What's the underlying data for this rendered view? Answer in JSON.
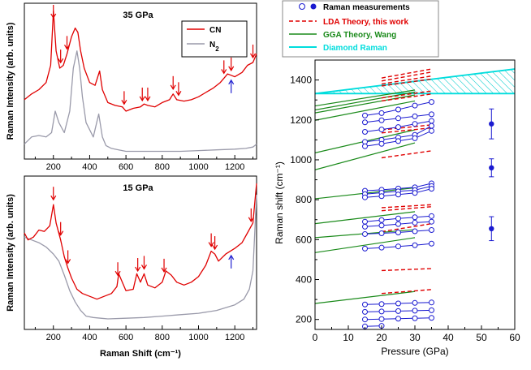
{
  "chart_data": [
    {
      "type": "line",
      "title": "35 GPa",
      "xlabel": "",
      "ylabel": "Raman Intensity (arb. units)",
      "xlim": [
        40,
        1320
      ],
      "xticks": [
        200,
        400,
        600,
        800,
        1000,
        1200
      ],
      "legend": [
        {
          "name": "CN",
          "color": "#e00000"
        },
        {
          "name": "N",
          "sub": "2",
          "color": "#9a9aaa"
        }
      ],
      "series": [
        {
          "name": "CN",
          "color": "#e00000",
          "x": [
            40,
            80,
            120,
            160,
            185,
            200,
            215,
            235,
            255,
            275,
            300,
            320,
            335,
            350,
            370,
            400,
            430,
            455,
            470,
            500,
            540,
            580,
            600,
            640,
            680,
            700,
            720,
            760,
            800,
            840,
            860,
            880,
            920,
            960,
            1000,
            1040,
            1080,
            1120,
            1140,
            1160,
            1180,
            1200,
            1240,
            1270,
            1300,
            1320
          ],
          "y": [
            0.38,
            0.42,
            0.45,
            0.5,
            0.62,
            1.0,
            0.72,
            0.6,
            0.62,
            0.7,
            0.82,
            0.88,
            0.85,
            0.72,
            0.6,
            0.5,
            0.48,
            0.58,
            0.45,
            0.36,
            0.34,
            0.33,
            0.3,
            0.32,
            0.33,
            0.35,
            0.34,
            0.33,
            0.36,
            0.38,
            0.42,
            0.38,
            0.37,
            0.38,
            0.4,
            0.43,
            0.46,
            0.5,
            0.53,
            0.56,
            0.55,
            0.54,
            0.57,
            0.62,
            0.64,
            0.7
          ]
        },
        {
          "name": "N2",
          "color": "#9a9aaa",
          "x": [
            40,
            80,
            120,
            160,
            190,
            210,
            230,
            260,
            290,
            310,
            330,
            345,
            360,
            380,
            420,
            450,
            470,
            490,
            520,
            560,
            600,
            700,
            800,
            900,
            1000,
            1100,
            1200,
            1260,
            1300,
            1320
          ],
          "y": [
            0.07,
            0.12,
            0.13,
            0.12,
            0.15,
            0.3,
            0.22,
            0.15,
            0.3,
            0.6,
            0.72,
            0.6,
            0.4,
            0.22,
            0.12,
            0.28,
            0.12,
            0.06,
            0.04,
            0.03,
            0.02,
            0.02,
            0.02,
            0.02,
            0.025,
            0.03,
            0.035,
            0.04,
            0.05,
            0.07
          ]
        }
      ],
      "red_arrows_x": [
        200,
        240,
        275,
        590,
        690,
        720,
        860,
        890,
        1140,
        1180,
        1300
      ],
      "blue_arrow_x": 1180
    },
    {
      "type": "line",
      "title": "15 GPa",
      "xlabel": "Raman Shift (cm⁻¹)",
      "ylabel": "Raman Intensity (arb. units)",
      "xlim": [
        40,
        1320
      ],
      "xticks": [
        200,
        400,
        600,
        800,
        1000,
        1200
      ],
      "series": [
        {
          "name": "CN",
          "color": "#e00000",
          "x": [
            40,
            60,
            90,
            120,
            150,
            180,
            200,
            215,
            240,
            260,
            280,
            300,
            330,
            360,
            400,
            440,
            480,
            520,
            550,
            560,
            600,
            640,
            660,
            680,
            700,
            720,
            760,
            800,
            820,
            850,
            880,
            920,
            960,
            1000,
            1040,
            1070,
            1090,
            1110,
            1150,
            1200,
            1240,
            1270,
            1300,
            1320
          ],
          "y": [
            0.65,
            0.6,
            0.62,
            0.67,
            0.66,
            0.7,
            0.85,
            0.72,
            0.6,
            0.48,
            0.4,
            0.33,
            0.25,
            0.22,
            0.2,
            0.18,
            0.2,
            0.22,
            0.27,
            0.36,
            0.24,
            0.25,
            0.36,
            0.3,
            0.36,
            0.28,
            0.26,
            0.3,
            0.38,
            0.35,
            0.3,
            0.28,
            0.3,
            0.34,
            0.42,
            0.52,
            0.5,
            0.45,
            0.5,
            0.54,
            0.58,
            0.65,
            0.72,
            1.0
          ]
        },
        {
          "name": "N2",
          "color": "#9a9aaa",
          "x": [
            40,
            80,
            120,
            160,
            200,
            230,
            260,
            290,
            320,
            350,
            380,
            420,
            500,
            600,
            700,
            800,
            900,
            1000,
            1100,
            1200,
            1250,
            1280,
            1300,
            1320
          ],
          "y": [
            0.62,
            0.6,
            0.58,
            0.55,
            0.5,
            0.45,
            0.35,
            0.24,
            0.16,
            0.1,
            0.06,
            0.05,
            0.04,
            0.045,
            0.05,
            0.06,
            0.07,
            0.08,
            0.1,
            0.14,
            0.18,
            0.25,
            0.38,
            0.92
          ]
        }
      ],
      "red_arrows_x": [
        200,
        240,
        280,
        555,
        665,
        700,
        810,
        1070,
        1090,
        1290
      ],
      "blue_arrow_x": 1180
    },
    {
      "type": "scatter",
      "title": "",
      "xlabel": "Pressure (GPa)",
      "ylabel": "Raman shift (cm⁻¹)",
      "xlim": [
        0,
        60
      ],
      "ylim": [
        150,
        1500
      ],
      "xticks": [
        0,
        10,
        20,
        30,
        40,
        50,
        60
      ],
      "yticks": [
        200,
        400,
        600,
        800,
        1000,
        1200,
        1400
      ],
      "legend_labels": [
        "Raman measurements",
        "LDA Theory, this work",
        "GGA Theory, Wang",
        "Diamond Raman"
      ],
      "legend_colors": [
        "#1a1ad0",
        "#e00000",
        "#1a8a1a",
        "#00dddd"
      ],
      "diamond_band": {
        "x": [
          0,
          60
        ],
        "lower": [
          1332,
          1332
        ],
        "upper": [
          1332,
          1455
        ]
      },
      "measured_open": [
        {
          "x": [
            15,
            20,
            25,
            30,
            35
          ],
          "y": [
            1222,
            1234,
            1252,
            1272,
            1290
          ]
        },
        {
          "x": [
            15,
            20,
            25,
            30,
            35
          ],
          "y": [
            1188,
            1198,
            1208,
            1218,
            1228
          ]
        },
        {
          "x": [
            15,
            20,
            25,
            30,
            35
          ],
          "y": [
            1140,
            1152,
            1164,
            1180,
            1195
          ]
        },
        {
          "x": [
            15,
            20,
            25,
            30,
            35
          ],
          "y": [
            1090,
            1100,
            1112,
            1125,
            1170
          ]
        },
        {
          "x": [
            15,
            20,
            25,
            30,
            35
          ],
          "y": [
            1068,
            1080,
            1094,
            1108,
            1145
          ]
        },
        {
          "x": [
            15,
            20,
            25,
            30,
            35
          ],
          "y": [
            845,
            850,
            856,
            862,
            882
          ]
        },
        {
          "x": [
            15,
            20,
            25,
            30,
            35
          ],
          "y": [
            828,
            835,
            842,
            848,
            868
          ]
        },
        {
          "x": [
            15,
            20,
            25,
            30,
            35
          ],
          "y": [
            812,
            818,
            826,
            834,
            855
          ]
        },
        {
          "x": [
            15,
            20,
            25,
            30,
            35
          ],
          "y": [
            690,
            698,
            706,
            712,
            718
          ]
        },
        {
          "x": [
            15,
            20,
            25,
            30,
            35
          ],
          "y": [
            665,
            671,
            678,
            685,
            690
          ]
        },
        {
          "x": [
            15,
            20,
            25,
            30,
            35
          ],
          "y": [
            628,
            632,
            636,
            642,
            648
          ]
        },
        {
          "x": [
            15,
            20,
            25,
            30,
            35
          ],
          "y": [
            555,
            560,
            566,
            572,
            580
          ]
        },
        {
          "x": [
            15,
            20,
            25,
            30,
            35
          ],
          "y": [
            275,
            277,
            280,
            283,
            285
          ]
        },
        {
          "x": [
            15,
            20,
            25,
            30,
            35
          ],
          "y": [
            238,
            240,
            242,
            244,
            246
          ]
        },
        {
          "x": [
            15,
            20,
            25,
            30,
            35
          ],
          "y": [
            200,
            202,
            204,
            206,
            208
          ]
        },
        {
          "x": [
            15,
            20
          ],
          "y": [
            165,
            168
          ]
        }
      ],
      "measured_filled": {
        "x": [
          53,
          53,
          53
        ],
        "y": [
          1180,
          960,
          655
        ],
        "err": [
          75,
          45,
          60
        ]
      },
      "lda_segments": [
        {
          "x": [
            20,
            35
          ],
          "y": [
            1410,
            1455
          ]
        },
        {
          "x": [
            20,
            35
          ],
          "y": [
            1395,
            1440
          ]
        },
        {
          "x": [
            20,
            35
          ],
          "y": [
            1380,
            1420
          ]
        },
        {
          "x": [
            20,
            35
          ],
          "y": [
            1370,
            1405
          ]
        },
        {
          "x": [
            20,
            35
          ],
          "y": [
            1310,
            1345
          ]
        },
        {
          "x": [
            20,
            35
          ],
          "y": [
            1295,
            1330
          ]
        },
        {
          "x": [
            20,
            35
          ],
          "y": [
            1150,
            1175
          ]
        },
        {
          "x": [
            20,
            35
          ],
          "y": [
            1135,
            1160
          ]
        },
        {
          "x": [
            20,
            35
          ],
          "y": [
            1010,
            1045
          ]
        },
        {
          "x": [
            20,
            35
          ],
          "y": [
            760,
            775
          ]
        },
        {
          "x": [
            20,
            35
          ],
          "y": [
            745,
            765
          ]
        },
        {
          "x": [
            20,
            35
          ],
          "y": [
            640,
            680
          ]
        },
        {
          "x": [
            20,
            35
          ],
          "y": [
            445,
            455
          ]
        },
        {
          "x": [
            20,
            35
          ],
          "y": [
            330,
            350
          ]
        }
      ],
      "gga_segments": [
        {
          "x": [
            0,
            30
          ],
          "y": [
            1270,
            1350
          ]
        },
        {
          "x": [
            0,
            30
          ],
          "y": [
            1250,
            1340
          ]
        },
        {
          "x": [
            0,
            30
          ],
          "y": [
            1235,
            1325
          ]
        },
        {
          "x": [
            0,
            30
          ],
          "y": [
            1198,
            1295
          ]
        },
        {
          "x": [
            0,
            30
          ],
          "y": [
            1035,
            1150
          ]
        },
        {
          "x": [
            0,
            30
          ],
          "y": [
            950,
            1085
          ]
        },
        {
          "x": [
            0,
            30
          ],
          "y": [
            805,
            860
          ]
        },
        {
          "x": [
            0,
            30
          ],
          "y": [
            680,
            740
          ]
        },
        {
          "x": [
            0,
            30
          ],
          "y": [
            610,
            650
          ]
        },
        {
          "x": [
            0,
            30
          ],
          "y": [
            535,
            610
          ]
        },
        {
          "x": [
            0,
            30
          ],
          "y": [
            280,
            340
          ]
        }
      ]
    }
  ]
}
